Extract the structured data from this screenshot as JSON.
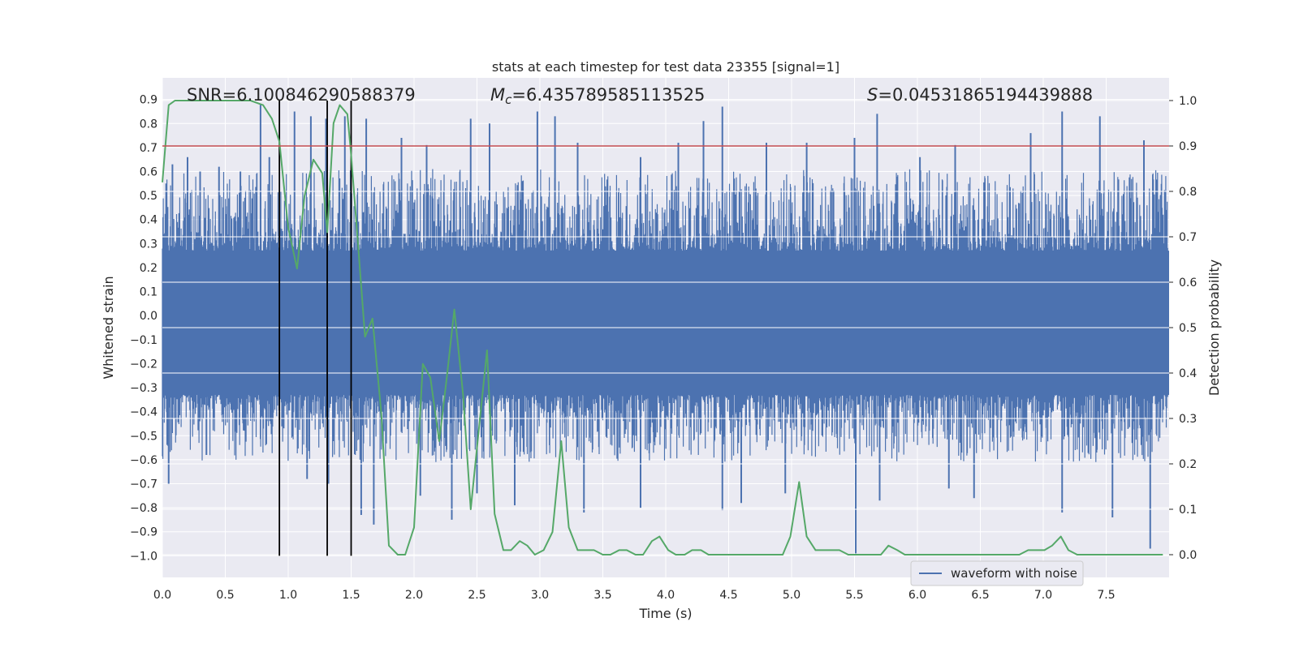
{
  "chart_data": {
    "type": "line",
    "title": "stats at each timestep for test data 23355 [signal=1]",
    "xlabel": "Time (s)",
    "ylabel_left": "Whitened strain",
    "ylabel_right": "Detection probability",
    "xlim": [
      0.0,
      8.0
    ],
    "ylim_left": [
      -1.09,
      0.99
    ],
    "ylim_right": [
      -0.05,
      1.05
    ],
    "x_ticks": [
      "0.0",
      "0.5",
      "1.0",
      "1.5",
      "2.0",
      "2.5",
      "3.0",
      "3.5",
      "4.0",
      "4.5",
      "5.0",
      "5.5",
      "6.0",
      "6.5",
      "7.0",
      "7.5"
    ],
    "y_left_ticks": [
      "0.9",
      "0.8",
      "0.7",
      "0.6",
      "0.5",
      "0.4",
      "0.3",
      "0.2",
      "0.1",
      "0.0",
      "−0.1",
      "−0.2",
      "−0.3",
      "−0.4",
      "−0.5",
      "−0.6",
      "−0.7",
      "−0.8",
      "−0.9",
      "−1.0"
    ],
    "y_right_ticks": [
      "1.0",
      "0.9",
      "0.8",
      "0.7",
      "0.6",
      "0.5",
      "0.4",
      "0.3",
      "0.2",
      "0.1",
      "0.0"
    ],
    "grid": true,
    "annotations": {
      "snr": "SNR=6.100846290588379",
      "mc_symbol": "M",
      "mc_sub": "c",
      "mc_value": "=6.435789585113525",
      "s_symbol": "S",
      "s_value": "=0.04531865194439888"
    },
    "threshold": {
      "value": 0.9,
      "axis": "right",
      "color": "#c44e52"
    },
    "vertical_markers": [
      0.93,
      1.31,
      1.5
    ],
    "legend": {
      "label": "waveform with noise",
      "position": "lower-right"
    },
    "series": [
      {
        "name": "waveform with noise",
        "axis": "left",
        "color": "#4c72b0",
        "envelope": {
          "typical_upper": 0.32,
          "typical_lower": -0.38
        },
        "peaks_upper": [
          [
            0.03,
            0.55
          ],
          [
            0.08,
            0.63
          ],
          [
            0.2,
            0.66
          ],
          [
            0.3,
            0.6
          ],
          [
            0.45,
            0.62
          ],
          [
            0.62,
            0.6
          ],
          [
            0.78,
            0.88
          ],
          [
            0.85,
            0.66
          ],
          [
            1.05,
            0.85
          ],
          [
            1.18,
            0.83
          ],
          [
            1.3,
            0.82
          ],
          [
            1.45,
            0.83
          ],
          [
            1.62,
            0.82
          ],
          [
            1.9,
            0.74
          ],
          [
            2.1,
            0.71
          ],
          [
            2.45,
            0.82
          ],
          [
            2.6,
            0.8
          ],
          [
            2.98,
            0.85
          ],
          [
            3.12,
            0.83
          ],
          [
            3.3,
            0.72
          ],
          [
            3.8,
            0.66
          ],
          [
            4.1,
            0.72
          ],
          [
            4.3,
            0.81
          ],
          [
            4.45,
            0.87
          ],
          [
            4.8,
            0.72
          ],
          [
            5.12,
            0.72
          ],
          [
            5.5,
            0.74
          ],
          [
            5.68,
            0.84
          ],
          [
            6.02,
            0.66
          ],
          [
            6.3,
            0.71
          ],
          [
            6.9,
            0.76
          ],
          [
            7.15,
            0.85
          ],
          [
            7.45,
            0.83
          ],
          [
            7.8,
            0.73
          ]
        ],
        "peaks_lower": [
          [
            0.05,
            -0.7
          ],
          [
            0.35,
            -0.58
          ],
          [
            1.15,
            -0.68
          ],
          [
            1.32,
            -0.7
          ],
          [
            1.58,
            -0.83
          ],
          [
            1.68,
            -0.87
          ],
          [
            2.05,
            -0.75
          ],
          [
            2.3,
            -0.85
          ],
          [
            2.5,
            -0.74
          ],
          [
            2.8,
            -0.79
          ],
          [
            3.35,
            -0.82
          ],
          [
            3.8,
            -0.8
          ],
          [
            4.45,
            -0.81
          ],
          [
            4.6,
            -0.78
          ],
          [
            4.95,
            -0.74
          ],
          [
            5.51,
            -0.99
          ],
          [
            5.7,
            -0.77
          ],
          [
            6.25,
            -0.72
          ],
          [
            6.45,
            -0.76
          ],
          [
            7.15,
            -0.82
          ],
          [
            7.55,
            -0.84
          ],
          [
            7.85,
            -0.97
          ]
        ]
      },
      {
        "name": "Detection probability",
        "axis": "right",
        "color": "#55a868",
        "x": [
          0.0,
          0.05,
          0.1,
          0.2,
          0.3,
          0.4,
          0.5,
          0.6,
          0.7,
          0.8,
          0.87,
          0.93,
          1.0,
          1.07,
          1.13,
          1.2,
          1.27,
          1.31,
          1.36,
          1.41,
          1.47,
          1.5,
          1.55,
          1.61,
          1.67,
          1.74,
          1.8,
          1.87,
          1.93,
          2.0,
          2.07,
          2.13,
          2.2,
          2.26,
          2.32,
          2.39,
          2.45,
          2.52,
          2.58,
          2.64,
          2.71,
          2.77,
          2.84,
          2.9,
          2.96,
          3.03,
          3.1,
          3.17,
          3.23,
          3.3,
          3.37,
          3.43,
          3.5,
          3.56,
          3.63,
          3.69,
          3.76,
          3.82,
          3.89,
          3.95,
          4.02,
          4.08,
          4.15,
          4.21,
          4.28,
          4.34,
          4.41,
          4.47,
          4.54,
          4.6,
          4.67,
          4.73,
          4.8,
          4.86,
          4.93,
          4.99,
          5.06,
          5.12,
          5.19,
          5.25,
          5.32,
          5.38,
          5.45,
          5.51,
          5.58,
          5.64,
          5.71,
          5.77,
          5.84,
          5.9,
          5.97,
          6.03,
          6.1,
          6.16,
          6.23,
          6.29,
          6.36,
          6.42,
          6.49,
          6.55,
          6.62,
          6.68,
          6.75,
          6.81,
          6.88,
          6.94,
          7.01,
          7.07,
          7.14,
          7.2,
          7.27,
          7.33,
          7.4,
          7.5,
          7.6,
          7.7,
          7.8,
          7.95
        ],
        "y": [
          0.82,
          0.99,
          1.0,
          1.0,
          1.0,
          1.0,
          1.0,
          1.0,
          1.0,
          0.99,
          0.96,
          0.91,
          0.72,
          0.63,
          0.79,
          0.87,
          0.84,
          0.71,
          0.95,
          0.99,
          0.97,
          0.88,
          0.7,
          0.48,
          0.52,
          0.31,
          0.02,
          0.0,
          0.0,
          0.06,
          0.42,
          0.39,
          0.25,
          0.39,
          0.54,
          0.35,
          0.1,
          0.29,
          0.45,
          0.09,
          0.01,
          0.01,
          0.03,
          0.02,
          0.0,
          0.01,
          0.05,
          0.25,
          0.06,
          0.01,
          0.01,
          0.01,
          0.0,
          0.0,
          0.01,
          0.01,
          0.0,
          0.0,
          0.03,
          0.04,
          0.01,
          0.0,
          0.0,
          0.01,
          0.01,
          0.0,
          0.0,
          0.0,
          0.0,
          0.0,
          0.0,
          0.0,
          0.0,
          0.0,
          0.0,
          0.04,
          0.16,
          0.04,
          0.01,
          0.01,
          0.01,
          0.01,
          0.0,
          0.0,
          0.0,
          0.0,
          0.0,
          0.02,
          0.01,
          0.0,
          0.0,
          0.0,
          0.0,
          0.0,
          0.0,
          0.0,
          0.0,
          0.0,
          0.0,
          0.0,
          0.0,
          0.0,
          0.0,
          0.0,
          0.01,
          0.01,
          0.01,
          0.02,
          0.04,
          0.01,
          0.0,
          0.0,
          0.0,
          0.0,
          0.0,
          0.0,
          0.0,
          0.0
        ]
      }
    ]
  }
}
